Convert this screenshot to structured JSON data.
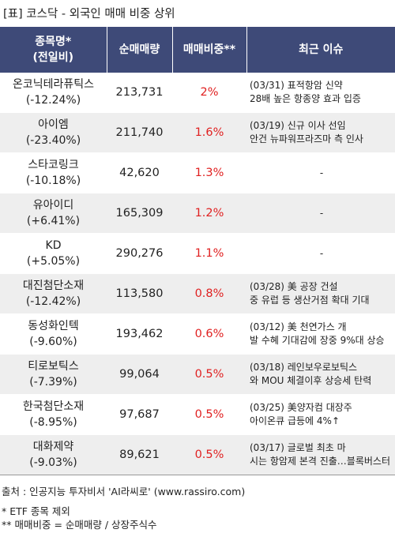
{
  "title": "[표] 코스닥 - 외국인 매매 비중 상위",
  "header": {
    "col1_line1": "종목명*",
    "col1_line2": "(전일비)",
    "col2": "순매매량",
    "col3": "매매비중**",
    "col4": "최근 이슈"
  },
  "rows": [
    {
      "name": "온코닉테라퓨틱스",
      "change": "(-12.24%)",
      "volume": "213,731",
      "ratio": "2%",
      "issue1": "(03/31) 표적항암 신약",
      "issue2": "28배 높은 항종양 효과 입증"
    },
    {
      "name": "아이엠",
      "change": "(-23.40%)",
      "volume": "211,740",
      "ratio": "1.6%",
      "issue1": "(03/19) 신규 이사 선임",
      "issue2": "안건 뉴파워프라즈마 측 인사"
    },
    {
      "name": "스타코링크",
      "change": "(-10.18%)",
      "volume": "42,620",
      "ratio": "1.3%",
      "issue1": "-",
      "issue2": ""
    },
    {
      "name": "유아이디",
      "change": "(+6.41%)",
      "volume": "165,309",
      "ratio": "1.2%",
      "issue1": "-",
      "issue2": ""
    },
    {
      "name": "KD",
      "change": "(+5.05%)",
      "volume": "290,276",
      "ratio": "1.1%",
      "issue1": "-",
      "issue2": ""
    },
    {
      "name": "대진첨단소재",
      "change": "(-12.42%)",
      "volume": "113,580",
      "ratio": "0.8%",
      "issue1": "(03/28) 美 공장 건설",
      "issue2": "중 유럽 등 생산거점 확대 기대"
    },
    {
      "name": "동성화인텍",
      "change": "(-9.60%)",
      "volume": "193,462",
      "ratio": "0.6%",
      "issue1": "(03/12) 美 천연가스 개",
      "issue2": "발 수혜 기대감에 장중 9%대 상승"
    },
    {
      "name": "티로보틱스",
      "change": "(-7.39%)",
      "volume": "99,064",
      "ratio": "0.5%",
      "issue1": "(03/18) 레인보우로보틱스",
      "issue2": "와 MOU 체결이후 상승세 탄력"
    },
    {
      "name": "한국첨단소재",
      "change": "(-8.95%)",
      "volume": "97,687",
      "ratio": "0.5%",
      "issue1": "(03/25) 美양자컴 대장주",
      "issue2": " 아이온큐 급등에 4%↑"
    },
    {
      "name": "대화제약",
      "change": "(-9.03%)",
      "volume": "89,621",
      "ratio": "0.5%",
      "issue1": "(03/17) 글로벌 최초 마",
      "issue2": "시는 항암제 본격 진출…블록버스터"
    }
  ],
  "footer": {
    "source": "출처 : 인공지능 투자비서 'AI라씨로' (www.rassiro.com)",
    "note1": "* ETF 종목 제외",
    "note2": "** 매매비중 = 순매매량 / 상장주식수"
  }
}
